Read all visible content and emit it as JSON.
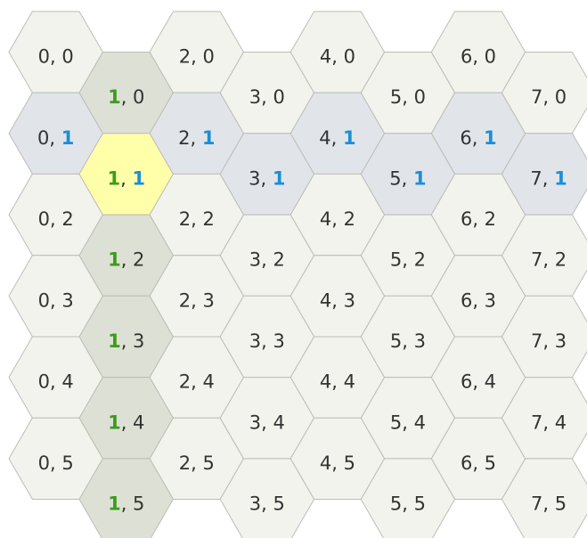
{
  "grid": {
    "columns": [
      "0",
      "1",
      "2",
      "3",
      "4",
      "5",
      "6",
      "7"
    ],
    "rows": [
      "0",
      "1",
      "2",
      "3",
      "4",
      "5"
    ],
    "separator": ", ",
    "highlight": {
      "column": 1,
      "row": 1
    },
    "colors": {
      "cell": "#f3f3ee",
      "column": "#dde0d4",
      "row": "#e1e5e9",
      "both": "#ffffaa",
      "stroke": "#bdbdb8",
      "text": "#333333",
      "column_text": "#3c9c1c",
      "row_text": "#1a8fd9"
    }
  }
}
